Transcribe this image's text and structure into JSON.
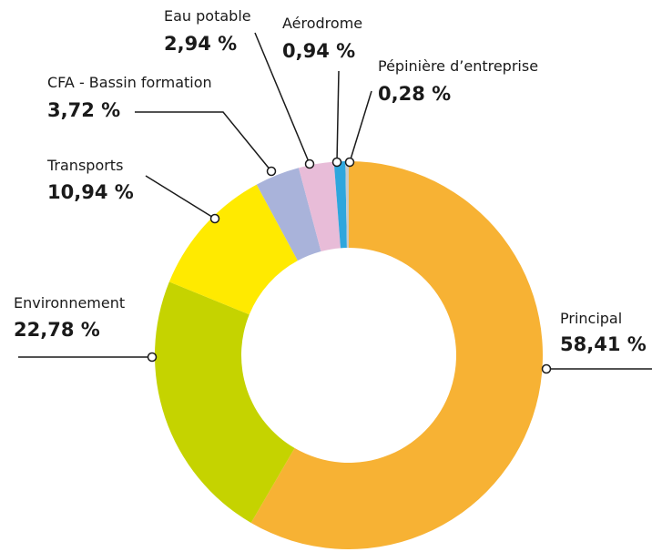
{
  "chart_data": {
    "type": "donut",
    "categories": [
      "Principal",
      "Environnement",
      "Transports",
      "CFA - Bassin formation",
      "Eau potable",
      "Aérodrome",
      "Pépinière d’entreprise"
    ],
    "values": [
      58.41,
      22.78,
      10.94,
      3.72,
      2.94,
      0.94,
      0.28
    ],
    "value_labels": [
      "58,41 %",
      "22,78 %",
      "10,94 %",
      "3,72 %",
      "2,94 %",
      "0,94 %",
      "0,28 %"
    ],
    "colors": [
      "#f7b234",
      "#c5d300",
      "#ffea00",
      "#a9b3da",
      "#e8bcd8",
      "#2ea6dd",
      "#c9c9c9"
    ]
  }
}
